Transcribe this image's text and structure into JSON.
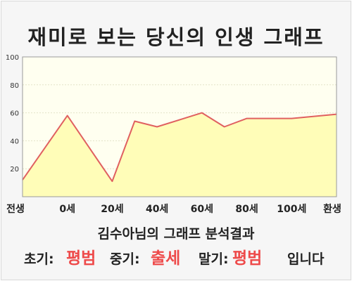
{
  "title": "재미로 보는 당신의 인생 그래프",
  "subtitle": "김수아님의 그래프 분석결과",
  "verdict": {
    "early_label": "초기:",
    "early_value": "평범",
    "middle_label": "중기:",
    "middle_value": "출세",
    "late_label": "말기:",
    "late_value": "평범",
    "ending": "입니다"
  },
  "colors": {
    "line": "#e06060",
    "fill": "#fffdb8",
    "plot_background": "#fffff0",
    "highlight": "#ee4a4a"
  },
  "chart_data": {
    "type": "area",
    "title": "재미로 보는 당신의 인생 그래프",
    "xlabel": "",
    "ylabel": "",
    "ylim": [
      0,
      100
    ],
    "yticks": [
      20,
      40,
      60,
      80,
      100
    ],
    "xticks": [
      "전생",
      "0세",
      "20세",
      "40세",
      "60세",
      "80세",
      "100세",
      "환생"
    ],
    "grid": true,
    "x": [
      -2,
      0,
      2,
      3,
      4,
      5,
      6,
      7,
      8,
      10,
      12
    ],
    "y": [
      12,
      58,
      11,
      54,
      50,
      55,
      60,
      50,
      56,
      56,
      59
    ]
  }
}
